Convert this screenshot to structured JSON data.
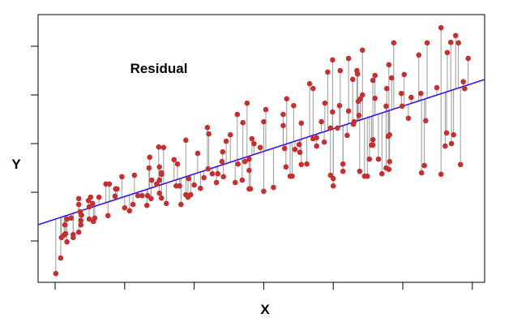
{
  "chart_data": {
    "type": "scatter",
    "title": "",
    "annotation": "Residual",
    "xlabel": "X",
    "ylabel": "Y",
    "xlim": [
      -0.245,
      6.177
    ],
    "ylim": [
      -0.85,
      4.65
    ],
    "x_ticks": [
      0,
      1,
      2,
      3,
      4,
      5,
      6
    ],
    "y_ticks": [
      0,
      1,
      2,
      3,
      4
    ],
    "tick_labels_shown": false,
    "grid": false,
    "legend": "none",
    "regression_line": {
      "intercept": 0.447,
      "slope": 0.4645
    },
    "residuals_shown": true,
    "colors": {
      "points": "#c4302f",
      "regression_line": "#3a14e6",
      "residual_lines": "#9a9a9a",
      "axes": "#000000"
    },
    "points": [
      [
        0.01,
        -0.67
      ],
      [
        0.08,
        -0.35
      ],
      [
        0.09,
        0.07
      ],
      [
        0.13,
        0.12
      ],
      [
        0.15,
        0.15
      ],
      [
        0.17,
        -0.02
      ],
      [
        0.14,
        0.33
      ],
      [
        0.17,
        0.45
      ],
      [
        0.23,
        0.47
      ],
      [
        0.26,
        0.07
      ],
      [
        0.26,
        0.13
      ],
      [
        0.34,
        0.18
      ],
      [
        0.37,
        0.33
      ],
      [
        0.37,
        0.42
      ],
      [
        0.38,
        0.53
      ],
      [
        0.36,
        0.6
      ],
      [
        0.34,
        0.75
      ],
      [
        0.34,
        0.87
      ],
      [
        0.49,
        0.45
      ],
      [
        0.55,
        0.4
      ],
      [
        0.57,
        0.47
      ],
      [
        0.49,
        0.7
      ],
      [
        0.54,
        0.77
      ],
      [
        0.48,
        0.83
      ],
      [
        0.51,
        0.9
      ],
      [
        0.63,
        0.9
      ],
      [
        0.73,
        1.17
      ],
      [
        0.78,
        1.17
      ],
      [
        0.76,
        0.52
      ],
      [
        0.86,
        0.92
      ],
      [
        0.87,
        1.07
      ],
      [
        0.89,
        1.07
      ],
      [
        0.96,
        1.32
      ],
      [
        1.0,
        0.68
      ],
      [
        1.07,
        0.62
      ],
      [
        1.12,
        0.75
      ],
      [
        1.14,
        1.35
      ],
      [
        1.19,
        0.93
      ],
      [
        1.25,
        0.93
      ],
      [
        1.32,
        0.73
      ],
      [
        1.33,
        0.93
      ],
      [
        1.35,
        1.5
      ],
      [
        1.36,
        1.72
      ],
      [
        1.38,
        0.87
      ],
      [
        1.39,
        1.25
      ],
      [
        1.49,
        1.93
      ],
      [
        1.56,
        1.92
      ],
      [
        1.5,
        1.52
      ],
      [
        1.53,
        1.4
      ],
      [
        1.53,
        1.37
      ],
      [
        1.5,
        1.25
      ],
      [
        1.46,
        1.17
      ],
      [
        1.5,
        0.98
      ],
      [
        1.53,
        0.88
      ],
      [
        1.6,
        0.77
      ],
      [
        1.71,
        1.67
      ],
      [
        1.76,
        1.58
      ],
      [
        1.74,
        1.13
      ],
      [
        1.79,
        1.13
      ],
      [
        1.81,
        0.75
      ],
      [
        1.88,
        2.07
      ],
      [
        1.88,
        0.95
      ],
      [
        1.91,
        0.9
      ],
      [
        1.95,
        0.95
      ],
      [
        1.92,
        1.28
      ],
      [
        2.0,
        1.15
      ],
      [
        2.05,
        1.8
      ],
      [
        2.09,
        1.08
      ],
      [
        2.14,
        1.3
      ],
      [
        2.19,
        2.33
      ],
      [
        2.21,
        2.2
      ],
      [
        2.2,
        1.48
      ],
      [
        2.26,
        1.38
      ],
      [
        2.32,
        1.2
      ],
      [
        2.34,
        1.38
      ],
      [
        2.41,
        1.83
      ],
      [
        2.4,
        1.63
      ],
      [
        2.42,
        1.32
      ],
      [
        2.46,
        2.05
      ],
      [
        2.52,
        2.18
      ],
      [
        2.59,
        1.2
      ],
      [
        2.62,
        2.6
      ],
      [
        2.63,
        1.58
      ],
      [
        2.69,
        1.25
      ],
      [
        2.7,
        2.43
      ],
      [
        2.76,
        2.83
      ],
      [
        2.73,
        1.63
      ],
      [
        2.79,
        1.68
      ],
      [
        2.79,
        1.45
      ],
      [
        2.79,
        1.07
      ],
      [
        2.81,
        1.07
      ],
      [
        2.83,
        2.1
      ],
      [
        2.86,
        2.0
      ],
      [
        2.95,
        1.92
      ],
      [
        3.0,
        2.45
      ],
      [
        3.03,
        2.7
      ],
      [
        3.0,
        1.02
      ],
      [
        3.14,
        1.1
      ],
      [
        3.28,
        2.6
      ],
      [
        3.28,
        2.37
      ],
      [
        3.33,
        2.92
      ],
      [
        3.3,
        1.9
      ],
      [
        3.32,
        1.52
      ],
      [
        3.38,
        1.33
      ],
      [
        3.41,
        1.33
      ],
      [
        3.43,
        2.78
      ],
      [
        3.45,
        1.88
      ],
      [
        3.51,
        1.98
      ],
      [
        3.52,
        1.82
      ],
      [
        3.54,
        2.42
      ],
      [
        3.54,
        1.57
      ],
      [
        3.62,
        1.58
      ],
      [
        3.66,
        3.23
      ],
      [
        3.71,
        3.13
      ],
      [
        3.71,
        2.1
      ],
      [
        3.76,
        2.12
      ],
      [
        3.76,
        1.95
      ],
      [
        3.83,
        2.45
      ],
      [
        3.87,
        2.03
      ],
      [
        3.88,
        2.83
      ],
      [
        3.92,
        3.47
      ],
      [
        3.96,
        2.32
      ],
      [
        3.96,
        1.35
      ],
      [
        3.99,
        2.65
      ],
      [
        3.99,
        3.72
      ],
      [
        4.0,
        1.28
      ],
      [
        4.0,
        1.13
      ],
      [
        4.06,
        2.32
      ],
      [
        4.09,
        2.78
      ],
      [
        4.1,
        3.5
      ],
      [
        4.14,
        1.58
      ],
      [
        4.14,
        1.43
      ],
      [
        4.2,
        2.17
      ],
      [
        4.22,
        2.67
      ],
      [
        4.22,
        3.75
      ],
      [
        4.28,
        3.32
      ],
      [
        4.3,
        2.45
      ],
      [
        4.29,
        2.4
      ],
      [
        4.34,
        3.5
      ],
      [
        4.35,
        3.43
      ],
      [
        4.36,
        2.87
      ],
      [
        4.37,
        2.58
      ],
      [
        4.38,
        1.43
      ],
      [
        4.39,
        2.92
      ],
      [
        4.42,
        3.0
      ],
      [
        4.42,
        3.92
      ],
      [
        4.45,
        1.33
      ],
      [
        4.49,
        1.33
      ],
      [
        4.52,
        1.68
      ],
      [
        4.55,
        1.97
      ],
      [
        4.57,
        3.3
      ],
      [
        4.6,
        3.4
      ],
      [
        4.6,
        2.93
      ],
      [
        4.57,
        2.08
      ],
      [
        4.57,
        1.97
      ],
      [
        4.65,
        1.68
      ],
      [
        4.7,
        1.38
      ],
      [
        4.76,
        1.5
      ],
      [
        4.77,
        3.13
      ],
      [
        4.76,
        2.77
      ],
      [
        4.8,
        3.62
      ],
      [
        4.79,
        2.15
      ],
      [
        4.81,
        2.18
      ],
      [
        4.81,
        1.63
      ],
      [
        4.8,
        1.47
      ],
      [
        4.84,
        3.35
      ],
      [
        4.87,
        4.07
      ],
      [
        4.98,
        3.03
      ],
      [
        4.99,
        2.77
      ],
      [
        5.02,
        3.42
      ],
      [
        5.08,
        2.52
      ],
      [
        5.12,
        2.95
      ],
      [
        5.23,
        3.82
      ],
      [
        5.26,
        3.03
      ],
      [
        5.27,
        1.4
      ],
      [
        5.31,
        1.55
      ],
      [
        5.33,
        2.47
      ],
      [
        5.35,
        4.07
      ],
      [
        5.49,
        3.15
      ],
      [
        5.55,
        4.38
      ],
      [
        5.55,
        1.37
      ],
      [
        5.61,
        1.95
      ],
      [
        5.63,
        2.22
      ],
      [
        5.64,
        3.87
      ],
      [
        5.69,
        4.08
      ],
      [
        5.7,
        2.0
      ],
      [
        5.73,
        2.18
      ],
      [
        5.76,
        4.22
      ],
      [
        5.8,
        4.07
      ],
      [
        5.83,
        1.57
      ],
      [
        5.87,
        3.27
      ],
      [
        5.89,
        3.13
      ],
      [
        5.94,
        3.75
      ]
    ]
  }
}
